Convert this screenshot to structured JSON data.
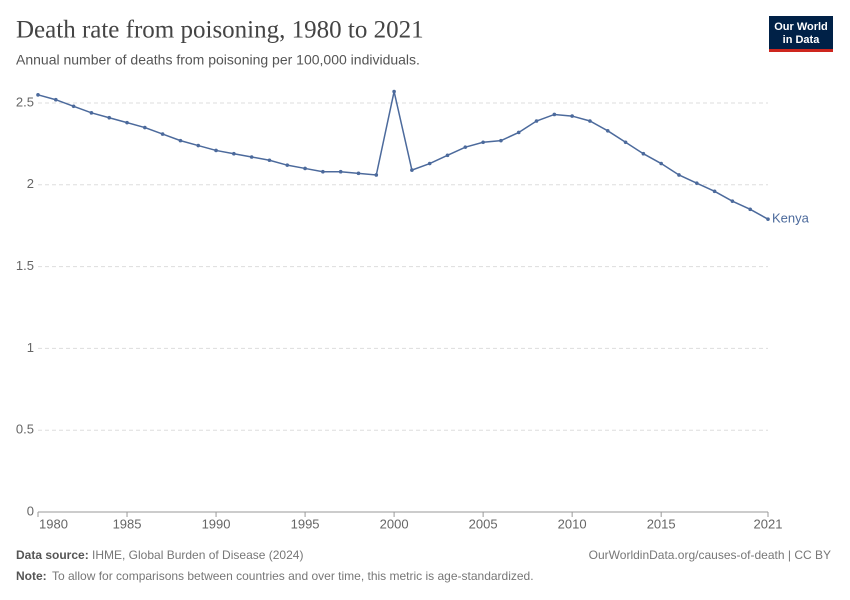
{
  "chart_data": {
    "type": "line",
    "title": "Death rate from poisoning, 1980 to 2021",
    "subtitle": "Annual number of deaths from poisoning per 100,000 individuals.",
    "logo": [
      "Our World",
      "in Data"
    ],
    "x": [
      1980,
      1981,
      1982,
      1983,
      1984,
      1985,
      1986,
      1987,
      1988,
      1989,
      1990,
      1991,
      1992,
      1993,
      1994,
      1995,
      1996,
      1997,
      1998,
      1999,
      2000,
      2001,
      2002,
      2003,
      2004,
      2005,
      2006,
      2007,
      2008,
      2009,
      2010,
      2011,
      2012,
      2013,
      2014,
      2015,
      2016,
      2017,
      2018,
      2019,
      2020,
      2021
    ],
    "series": [
      {
        "name": "Kenya",
        "color": "#4c6a9c",
        "values": [
          2.55,
          2.52,
          2.48,
          2.44,
          2.41,
          2.38,
          2.35,
          2.31,
          2.27,
          2.24,
          2.21,
          2.19,
          2.17,
          2.15,
          2.12,
          2.1,
          2.08,
          2.08,
          2.07,
          2.06,
          2.57,
          2.09,
          2.13,
          2.18,
          2.23,
          2.26,
          2.27,
          2.32,
          2.39,
          2.43,
          2.42,
          2.39,
          2.33,
          2.26,
          2.19,
          2.13,
          2.06,
          2.01,
          1.96,
          1.9,
          1.85,
          1.79
        ]
      }
    ],
    "xlim": [
      1980,
      2021
    ],
    "xticks": [
      1980,
      1985,
      1990,
      1995,
      2000,
      2005,
      2010,
      2015,
      2021
    ],
    "ylim": [
      0,
      2.5
    ],
    "yticks": [
      0,
      0.5,
      1,
      1.5,
      2,
      2.5
    ],
    "grid": true,
    "source_label": "Data source:",
    "source": "IHME, Global Burden of Disease (2024)",
    "url": "OurWorldinData.org/causes-of-death | CC BY",
    "note_label": "Note:",
    "note": "To allow for comparisons between countries and over time, this metric is age-standardized."
  }
}
